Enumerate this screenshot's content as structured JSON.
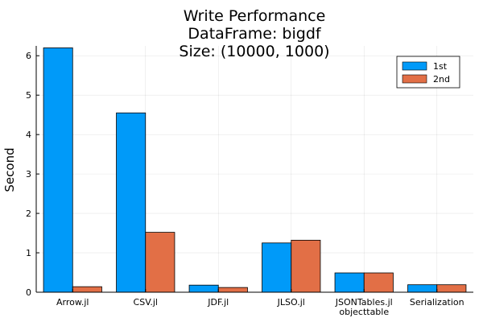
{
  "chart_data": {
    "type": "bar",
    "title": [
      "Write Performance",
      "DataFrame: bigdf",
      "Size: (10000, 1000)"
    ],
    "xlabel": "",
    "ylabel": "Second",
    "categories": [
      [
        "Arrow.jl"
      ],
      [
        "CSV.jl"
      ],
      [
        "JDF.jl"
      ],
      [
        "JLSO.jl"
      ],
      [
        "JSONTables.jl",
        "objecttable"
      ],
      [
        "Serialization"
      ]
    ],
    "series": [
      {
        "name": "1st",
        "color": "#009af9",
        "values": [
          6.2,
          4.55,
          0.18,
          1.25,
          0.49,
          0.19
        ]
      },
      {
        "name": "2nd",
        "color": "#e26f46",
        "values": [
          0.14,
          1.52,
          0.12,
          1.32,
          0.49,
          0.19
        ]
      }
    ],
    "ylim": [
      0,
      6.25
    ],
    "yticks": [
      0,
      1,
      2,
      3,
      4,
      5,
      6
    ],
    "grid": true,
    "legend": "top-right"
  }
}
